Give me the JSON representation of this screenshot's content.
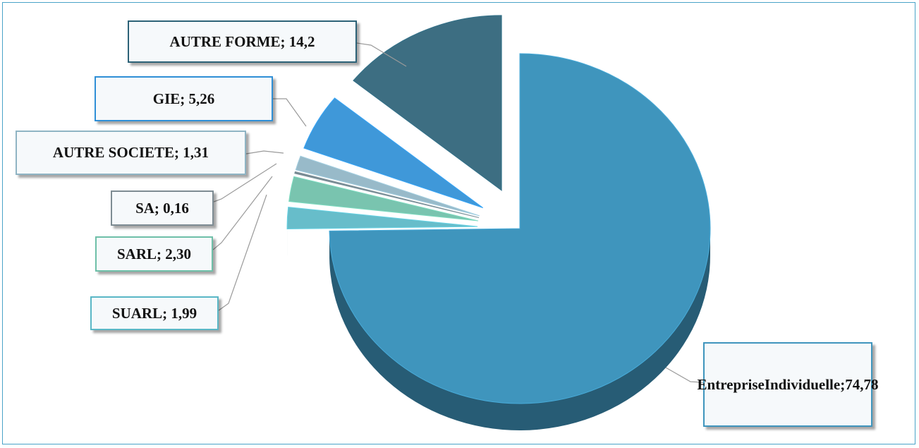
{
  "chart_data": {
    "type": "pie",
    "title": "",
    "slices": [
      {
        "label": "Entreprise Individuelle",
        "value": 74.78,
        "display": "Entreprise Individuelle; 74,78",
        "color": "#3f95bd"
      },
      {
        "label": "SUARL",
        "value": 1.99,
        "display": "SUARL; 1,99",
        "color": "#5ab7c6"
      },
      {
        "label": "SARL",
        "value": 2.3,
        "display": "SARL; 2,30",
        "color": "#6ebfa8"
      },
      {
        "label": "SA",
        "value": 0.16,
        "display": "SA; 0,16",
        "color": "#6d7f87"
      },
      {
        "label": "AUTRE SOCIETE",
        "value": 1.31,
        "display": "AUTRE SOCIETE; 1,31",
        "color": "#8fb4c4"
      },
      {
        "label": "GIE",
        "value": 5.26,
        "display": "GIE; 5,26",
        "color": "#2f8fd6"
      },
      {
        "label": "AUTRE FORME",
        "value": 14.2,
        "display": "AUTRE FORME; 14,2",
        "color": "#2c6277"
      }
    ],
    "label_border_colors": {
      "Entreprise Individuelle": "#3f95bd",
      "SUARL": "#5ab7c6",
      "SARL": "#6ebfa8",
      "SA": "#7e8c93",
      "AUTRE SOCIETE": "#8fb4c4",
      "GIE": "#2f8fd6",
      "AUTRE FORME": "#2c6277"
    },
    "style": "3d-exploded-pie",
    "legend": "none",
    "grid": false
  }
}
